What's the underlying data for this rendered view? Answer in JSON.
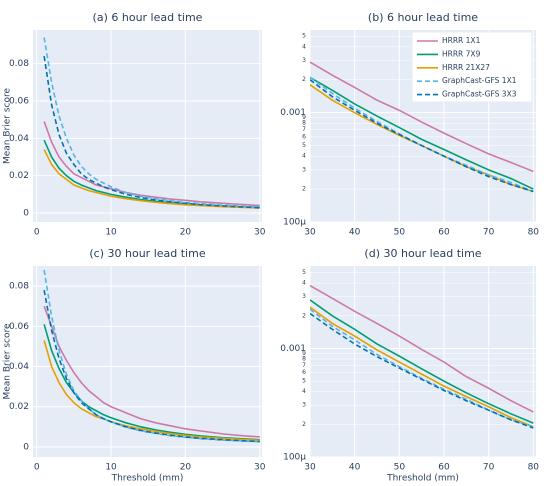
{
  "chart_data": [
    {
      "type": "line",
      "title": "(a) 6 hour lead time",
      "y_label": "Mean Brier score",
      "x": [
        1,
        2,
        3,
        4,
        5,
        6,
        7,
        8,
        9,
        10,
        12,
        14,
        16,
        18,
        20,
        22,
        25,
        28,
        30
      ],
      "xlim": [
        -0.5,
        30.3
      ],
      "xticks": [
        0,
        10,
        20,
        30
      ],
      "ylim": [
        -0.0048,
        0.098
      ],
      "yticks": [
        0,
        0.02,
        0.04,
        0.06,
        0.08
      ],
      "grid": true,
      "series": [
        {
          "color": "#cc79a7",
          "values": [
            0.049,
            0.038,
            0.03,
            0.025,
            0.021,
            0.019,
            0.017,
            0.015,
            0.014,
            0.013,
            0.011,
            0.0095,
            0.0085,
            0.0075,
            0.0068,
            0.006,
            0.0052,
            0.0045,
            0.004
          ]
        },
        {
          "color": "#009e73",
          "values": [
            0.039,
            0.03,
            0.024,
            0.02,
            0.017,
            0.015,
            0.0135,
            0.012,
            0.011,
            0.01,
            0.0085,
            0.0072,
            0.0063,
            0.0055,
            0.0048,
            0.0043,
            0.0037,
            0.0032,
            0.003
          ]
        },
        {
          "color": "#e69f00",
          "values": [
            0.034,
            0.026,
            0.021,
            0.018,
            0.015,
            0.0135,
            0.012,
            0.011,
            0.01,
            0.009,
            0.0077,
            0.0066,
            0.0057,
            0.005,
            0.0044,
            0.004,
            0.0034,
            0.003,
            0.0027
          ]
        },
        {
          "color": "#56b4e9",
          "dash": true,
          "values": [
            0.094,
            0.07,
            0.052,
            0.04,
            0.031,
            0.025,
            0.021,
            0.018,
            0.016,
            0.014,
            0.011,
            0.009,
            0.0077,
            0.0066,
            0.0057,
            0.005,
            0.0042,
            0.0036,
            0.0032
          ]
        },
        {
          "color": "#0072b2",
          "dash": true,
          "values": [
            0.084,
            0.058,
            0.042,
            0.032,
            0.026,
            0.021,
            0.018,
            0.016,
            0.014,
            0.0125,
            0.01,
            0.0083,
            0.007,
            0.006,
            0.0052,
            0.0045,
            0.0038,
            0.0032,
            0.0028
          ]
        }
      ]
    },
    {
      "type": "line",
      "title": "(b) 6 hour lead time",
      "log_y": true,
      "legend": "upper right",
      "x": [
        30,
        35,
        40,
        45,
        50,
        55,
        60,
        65,
        70,
        75,
        80
      ],
      "xlim": [
        30,
        80.6
      ],
      "xticks": [
        30,
        40,
        50,
        60,
        70,
        80
      ],
      "ylim": [
        0.0001,
        0.0057
      ],
      "grid": true,
      "yticks": [
        {
          "value": 0.0001,
          "label": "100µ"
        },
        {
          "value": 0.0002,
          "label": "2"
        },
        {
          "value": 0.0003,
          "label": "3"
        },
        {
          "value": 0.0004,
          "label": "4"
        },
        {
          "value": 0.0005,
          "label": "5"
        },
        {
          "value": 0.0006,
          "label": "6"
        },
        {
          "value": 0.0007,
          "label": "7"
        },
        {
          "value": 0.0008,
          "label": "8"
        },
        {
          "value": 0.0009,
          "label": "9"
        },
        0.001,
        {
          "value": 0.002,
          "label": "2"
        },
        {
          "value": 0.003,
          "label": "3"
        },
        {
          "value": 0.004,
          "label": "4"
        },
        {
          "value": 0.005,
          "label": "5"
        }
      ],
      "series": [
        {
          "name": "HRRR 1X1",
          "color": "#cc79a7",
          "values": [
            0.0029,
            0.0022,
            0.0017,
            0.0013,
            0.00105,
            0.00082,
            0.00065,
            0.00052,
            0.00042,
            0.00035,
            0.00029
          ]
        },
        {
          "name": "HRRR 7X9",
          "color": "#009e73",
          "values": [
            0.0021,
            0.0016,
            0.0012,
            0.00093,
            0.00073,
            0.00057,
            0.00046,
            0.00037,
            0.0003,
            0.00025,
            0.0002
          ]
        },
        {
          "name": "HRRR 21X27",
          "color": "#e69f00",
          "values": [
            0.0018,
            0.0013,
            0.001,
            0.00078,
            0.00062,
            0.0005,
            0.0004,
            0.00032,
            0.00027,
            0.00022,
            0.00019
          ]
        },
        {
          "name": "GraphCast-GFS 1X1",
          "color": "#56b4e9",
          "dash": true,
          "values": [
            0.0021,
            0.0015,
            0.0011,
            0.00083,
            0.00064,
            0.0005,
            0.0004,
            0.00033,
            0.00027,
            0.00023,
            0.00019
          ]
        },
        {
          "name": "GraphCast-GFS 3X3",
          "color": "#0072b2",
          "dash": true,
          "values": [
            0.002,
            0.0014,
            0.00105,
            0.0008,
            0.00063,
            0.0005,
            0.0004,
            0.00032,
            0.00026,
            0.00022,
            0.00019
          ]
        }
      ]
    },
    {
      "type": "line",
      "title": "(c) 30 hour lead time",
      "y_label": "Mean Brier score",
      "x_label": "Threshold (mm)",
      "x": [
        1,
        2,
        3,
        4,
        5,
        6,
        7,
        8,
        9,
        10,
        12,
        14,
        16,
        18,
        20,
        22,
        25,
        28,
        30
      ],
      "xlim": [
        -0.5,
        30.3
      ],
      "xticks": [
        0,
        10,
        20,
        30
      ],
      "ylim": [
        -0.005,
        0.09
      ],
      "yticks": [
        0,
        0.02,
        0.04,
        0.06,
        0.08
      ],
      "grid": true,
      "series": [
        {
          "color": "#cc79a7",
          "values": [
            0.07,
            0.06,
            0.05,
            0.043,
            0.037,
            0.032,
            0.028,
            0.025,
            0.022,
            0.02,
            0.017,
            0.014,
            0.012,
            0.0105,
            0.009,
            0.008,
            0.0065,
            0.0055,
            0.005
          ]
        },
        {
          "color": "#009e73",
          "values": [
            0.061,
            0.048,
            0.039,
            0.032,
            0.027,
            0.023,
            0.02,
            0.018,
            0.016,
            0.0145,
            0.012,
            0.01,
            0.0085,
            0.0073,
            0.0063,
            0.0055,
            0.0046,
            0.004,
            0.0036
          ]
        },
        {
          "color": "#e69f00",
          "values": [
            0.053,
            0.04,
            0.032,
            0.026,
            0.022,
            0.019,
            0.017,
            0.015,
            0.014,
            0.0125,
            0.0105,
            0.009,
            0.0077,
            0.0066,
            0.0058,
            0.005,
            0.0043,
            0.0037,
            0.0033
          ]
        },
        {
          "color": "#56b4e9",
          "dash": true,
          "values": [
            0.088,
            0.065,
            0.048,
            0.036,
            0.028,
            0.023,
            0.019,
            0.016,
            0.014,
            0.0125,
            0.0098,
            0.008,
            0.0067,
            0.0056,
            0.0048,
            0.0041,
            0.0034,
            0.0029,
            0.0026
          ]
        },
        {
          "color": "#0072b2",
          "dash": true,
          "values": [
            0.078,
            0.058,
            0.044,
            0.034,
            0.027,
            0.022,
            0.019,
            0.016,
            0.014,
            0.0125,
            0.01,
            0.0082,
            0.0069,
            0.0058,
            0.005,
            0.0043,
            0.0036,
            0.003,
            0.0027
          ]
        }
      ]
    },
    {
      "type": "line",
      "title": "(d) 30 hour lead time",
      "log_y": true,
      "x_label": "Threshold (mm)",
      "x": [
        30,
        35,
        40,
        45,
        50,
        55,
        60,
        65,
        70,
        75,
        80
      ],
      "xlim": [
        30,
        80.6
      ],
      "xticks": [
        30,
        40,
        50,
        60,
        70,
        80
      ],
      "ylim": [
        0.0001,
        0.00575
      ],
      "grid": true,
      "yticks": [
        {
          "value": 0.0001,
          "label": "100µ"
        },
        {
          "value": 0.0002,
          "label": "2"
        },
        {
          "value": 0.0003,
          "label": "3"
        },
        {
          "value": 0.0004,
          "label": "4"
        },
        {
          "value": 0.0005,
          "label": "5"
        },
        {
          "value": 0.0006,
          "label": "6"
        },
        {
          "value": 0.0007,
          "label": "7"
        },
        {
          "value": 0.0008,
          "label": "8"
        },
        {
          "value": 0.0009,
          "label": "9"
        },
        0.001,
        {
          "value": 0.002,
          "label": "2"
        },
        {
          "value": 0.003,
          "label": "3"
        },
        {
          "value": 0.004,
          "label": "4"
        },
        {
          "value": 0.005,
          "label": "5"
        }
      ],
      "series": [
        {
          "color": "#cc79a7",
          "values": [
            0.0038,
            0.0029,
            0.0022,
            0.0017,
            0.0013,
            0.00098,
            0.00075,
            0.00055,
            0.00043,
            0.00033,
            0.00026
          ]
        },
        {
          "color": "#009e73",
          "values": [
            0.0028,
            0.002,
            0.0015,
            0.0011,
            0.00085,
            0.00065,
            0.0005,
            0.00039,
            0.00031,
            0.00025,
            0.000205
          ]
        },
        {
          "color": "#e69f00",
          "values": [
            0.0024,
            0.0017,
            0.0013,
            0.00097,
            0.00075,
            0.00058,
            0.00045,
            0.00036,
            0.00029,
            0.00023,
            0.00019
          ]
        },
        {
          "color": "#56b4e9",
          "dash": true,
          "values": [
            0.0023,
            0.0016,
            0.0012,
            0.00088,
            0.00068,
            0.00053,
            0.00042,
            0.00034,
            0.00027,
            0.00022,
            0.00019
          ]
        },
        {
          "color": "#0072b2",
          "dash": true,
          "values": [
            0.0021,
            0.0015,
            0.0011,
            0.00084,
            0.00066,
            0.00052,
            0.00041,
            0.00033,
            0.00027,
            0.00022,
            0.000185
          ]
        }
      ]
    }
  ]
}
